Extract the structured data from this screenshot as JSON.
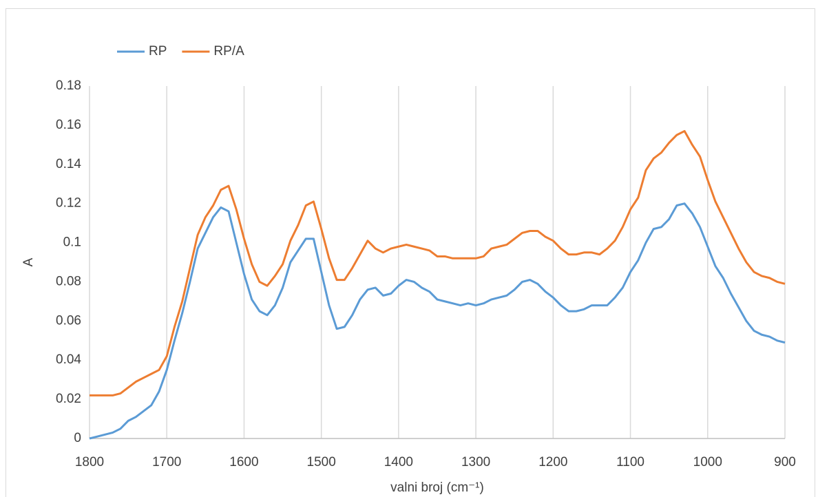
{
  "chart_data": {
    "type": "line",
    "x_label": "valni broj (cm⁻¹)",
    "y_label": "A",
    "x": [
      1800,
      1790,
      1780,
      1770,
      1760,
      1750,
      1740,
      1730,
      1720,
      1710,
      1700,
      1690,
      1680,
      1670,
      1660,
      1650,
      1640,
      1630,
      1620,
      1610,
      1600,
      1590,
      1580,
      1570,
      1560,
      1550,
      1540,
      1530,
      1520,
      1510,
      1500,
      1490,
      1480,
      1470,
      1460,
      1450,
      1440,
      1430,
      1420,
      1410,
      1400,
      1390,
      1380,
      1370,
      1360,
      1350,
      1340,
      1330,
      1320,
      1310,
      1300,
      1290,
      1280,
      1270,
      1260,
      1250,
      1240,
      1230,
      1220,
      1210,
      1200,
      1190,
      1180,
      1170,
      1160,
      1150,
      1140,
      1130,
      1120,
      1110,
      1100,
      1090,
      1080,
      1070,
      1060,
      1050,
      1040,
      1030,
      1020,
      1010,
      1000,
      990,
      980,
      970,
      960,
      950,
      940,
      930,
      920,
      910,
      900
    ],
    "series": [
      {
        "name": "RP",
        "color": "#5b9bd5",
        "values": [
          0.0,
          0.001,
          0.002,
          0.003,
          0.005,
          0.009,
          0.011,
          0.014,
          0.017,
          0.024,
          0.035,
          0.05,
          0.064,
          0.08,
          0.097,
          0.105,
          0.113,
          0.118,
          0.116,
          0.1,
          0.084,
          0.071,
          0.065,
          0.063,
          0.068,
          0.077,
          0.09,
          0.096,
          0.102,
          0.102,
          0.085,
          0.068,
          0.056,
          0.057,
          0.063,
          0.071,
          0.076,
          0.077,
          0.073,
          0.074,
          0.078,
          0.081,
          0.08,
          0.077,
          0.075,
          0.071,
          0.07,
          0.069,
          0.068,
          0.069,
          0.068,
          0.069,
          0.071,
          0.072,
          0.073,
          0.076,
          0.08,
          0.081,
          0.079,
          0.075,
          0.072,
          0.068,
          0.065,
          0.065,
          0.066,
          0.068,
          0.068,
          0.068,
          0.072,
          0.077,
          0.085,
          0.091,
          0.1,
          0.107,
          0.108,
          0.112,
          0.119,
          0.12,
          0.115,
          0.108,
          0.098,
          0.088,
          0.082,
          0.074,
          0.067,
          0.06,
          0.055,
          0.053,
          0.052,
          0.05,
          0.049
        ]
      },
      {
        "name": "RP/A",
        "color": "#ed7d31",
        "values": [
          0.022,
          0.022,
          0.022,
          0.022,
          0.023,
          0.026,
          0.029,
          0.031,
          0.033,
          0.035,
          0.042,
          0.057,
          0.07,
          0.087,
          0.104,
          0.113,
          0.119,
          0.127,
          0.129,
          0.117,
          0.102,
          0.089,
          0.08,
          0.078,
          0.083,
          0.089,
          0.101,
          0.109,
          0.119,
          0.121,
          0.107,
          0.092,
          0.081,
          0.081,
          0.087,
          0.094,
          0.101,
          0.097,
          0.095,
          0.097,
          0.098,
          0.099,
          0.098,
          0.097,
          0.096,
          0.093,
          0.093,
          0.092,
          0.092,
          0.092,
          0.092,
          0.093,
          0.097,
          0.098,
          0.099,
          0.102,
          0.105,
          0.106,
          0.106,
          0.103,
          0.101,
          0.097,
          0.094,
          0.094,
          0.095,
          0.095,
          0.094,
          0.097,
          0.101,
          0.108,
          0.117,
          0.123,
          0.137,
          0.143,
          0.146,
          0.151,
          0.155,
          0.157,
          0.15,
          0.144,
          0.132,
          0.121,
          0.113,
          0.105,
          0.097,
          0.09,
          0.085,
          0.083,
          0.082,
          0.08,
          0.079
        ]
      }
    ],
    "xlim": [
      1800,
      900
    ],
    "xticks": [
      1800,
      1700,
      1600,
      1500,
      1400,
      1300,
      1200,
      1100,
      1000,
      900
    ],
    "ylim": [
      0,
      0.18
    ],
    "yticks": [
      0,
      0.02,
      0.04,
      0.06,
      0.08,
      0.1,
      0.12,
      0.14,
      0.16,
      0.18
    ],
    "grid": "x",
    "legend": "top-left"
  }
}
